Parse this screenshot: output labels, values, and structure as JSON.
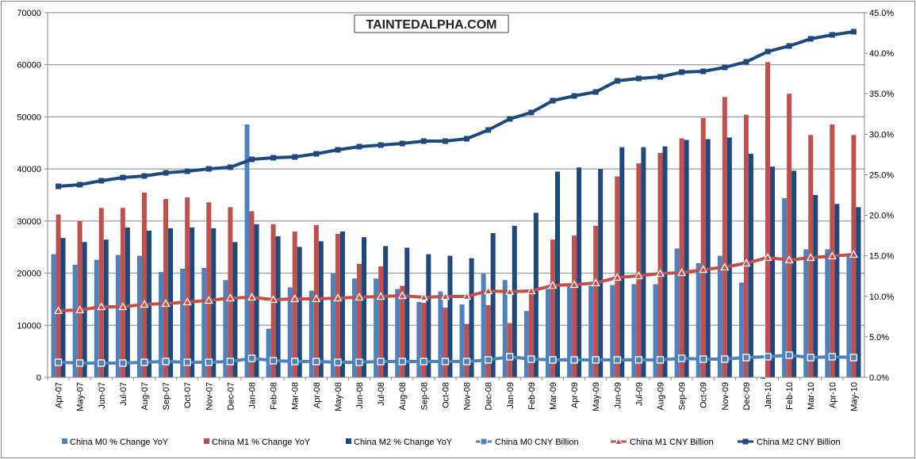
{
  "chart_data": {
    "type": "bar+line",
    "logo": "TAINTEDALPHA.COM",
    "categories": [
      "Apr-07",
      "May-07",
      "Jun-07",
      "Jul-07",
      "Aug-07",
      "Sep-07",
      "Oct-07",
      "Nov-07",
      "Dec-07",
      "Jan-08",
      "Feb-08",
      "Mar-08",
      "Apr-08",
      "May-08",
      "Jun-08",
      "Jul-08",
      "Aug-08",
      "Sep-08",
      "Oct-08",
      "Nov-08",
      "Dec-08",
      "Jan-09",
      "Feb-09",
      "Mar-09",
      "Apr-09",
      "May-09",
      "Jun-09",
      "Jul-09",
      "Aug-09",
      "Sep-09",
      "Oct-09",
      "Nov-09",
      "Dec-09",
      "Jan-10",
      "Feb-10",
      "Mar-10",
      "Apr-10",
      "May-10"
    ],
    "left_axis": {
      "min": 0,
      "max": 70000,
      "step": 10000,
      "ticks": [
        "0",
        "10000",
        "20000",
        "30000",
        "40000",
        "50000",
        "60000",
        "70000"
      ]
    },
    "right_axis": {
      "min": 0,
      "max": 45,
      "step": 5,
      "ticks": [
        "0.0%",
        "5.0%",
        "10.0%",
        "15.0%",
        "20.0%",
        "25.0%",
        "30.0%",
        "35.0%",
        "40.0%",
        "45.0%"
      ]
    },
    "grid": true,
    "legend_position": "bottom",
    "bar_series": [
      {
        "name": "China M0 % Change YoY",
        "axis": "right",
        "color": "#4f81bd",
        "values": [
          15.2,
          13.9,
          14.5,
          15.1,
          15.0,
          13.0,
          13.4,
          13.5,
          12.0,
          31.2,
          6.0,
          11.1,
          10.7,
          12.8,
          12.2,
          12.2,
          10.9,
          9.3,
          10.6,
          9.0,
          12.8,
          12.0,
          8.2,
          10.9,
          11.3,
          11.3,
          11.4,
          11.5,
          11.5,
          15.9,
          14.1,
          15.0,
          11.7,
          -0.2,
          22.1,
          15.8,
          15.8,
          15.0
        ]
      },
      {
        "name": "China M1 % Change YoY",
        "axis": "right",
        "color": "#c0504d",
        "values": [
          20.1,
          19.3,
          20.9,
          20.9,
          22.8,
          22.0,
          22.2,
          21.6,
          21.0,
          20.5,
          18.9,
          18.0,
          18.8,
          17.7,
          14.0,
          13.7,
          11.3,
          9.2,
          8.6,
          6.6,
          8.9,
          6.7,
          10.4,
          17.0,
          17.5,
          18.7,
          24.8,
          26.4,
          27.7,
          29.5,
          32.0,
          34.6,
          32.4,
          38.9,
          35.0,
          29.9,
          31.2,
          29.9
        ]
      },
      {
        "name": "China M2 % Change YoY",
        "axis": "right",
        "color": "#1f497d",
        "values": [
          17.2,
          16.7,
          17.0,
          18.5,
          18.1,
          18.4,
          18.5,
          18.4,
          16.7,
          18.9,
          17.4,
          16.1,
          16.8,
          18.0,
          17.3,
          16.2,
          16.0,
          15.2,
          15.0,
          14.7,
          17.8,
          18.7,
          20.3,
          25.4,
          25.9,
          25.7,
          28.4,
          28.4,
          28.5,
          29.3,
          29.4,
          29.6,
          27.6,
          26.0,
          25.5,
          22.5,
          21.4,
          21.0
        ]
      }
    ],
    "line_series": [
      {
        "name": "China M0 CNY Billion",
        "axis": "left",
        "color": "#4f81bd",
        "marker": "square-open",
        "values": [
          2890,
          2740,
          2740,
          2740,
          2890,
          3040,
          2890,
          2890,
          3040,
          3650,
          3200,
          3040,
          3040,
          2890,
          2890,
          3040,
          3040,
          3040,
          3040,
          3040,
          3350,
          3960,
          3500,
          3350,
          3350,
          3350,
          3350,
          3350,
          3350,
          3650,
          3500,
          3500,
          3800,
          3960,
          4260,
          3800,
          3960,
          3800
        ]
      },
      {
        "name": "China M1 CNY Billion",
        "axis": "left",
        "color": "#c0504d",
        "marker": "triangle-open",
        "values": [
          12780,
          12930,
          13540,
          13540,
          14000,
          14150,
          14460,
          14760,
          15220,
          15370,
          14910,
          15070,
          15070,
          15220,
          15370,
          15520,
          15670,
          15370,
          15520,
          15520,
          16590,
          16430,
          16590,
          17650,
          17800,
          18110,
          19170,
          19480,
          19930,
          20090,
          20700,
          21150,
          21910,
          22980,
          22520,
          22980,
          23280,
          23590
        ]
      },
      {
        "name": "China M2 CNY Billion",
        "axis": "left",
        "color": "#1f497d",
        "marker": "square-filled",
        "values": [
          36670,
          36980,
          37740,
          38350,
          38650,
          39260,
          39560,
          40020,
          40330,
          41850,
          42150,
          42300,
          42910,
          43670,
          44280,
          44590,
          44890,
          45350,
          45350,
          45800,
          47480,
          49610,
          50830,
          53110,
          54020,
          54780,
          56910,
          57370,
          57670,
          58590,
          58740,
          59500,
          60560,
          62540,
          63610,
          64980,
          65740,
          66350
        ]
      }
    ]
  }
}
